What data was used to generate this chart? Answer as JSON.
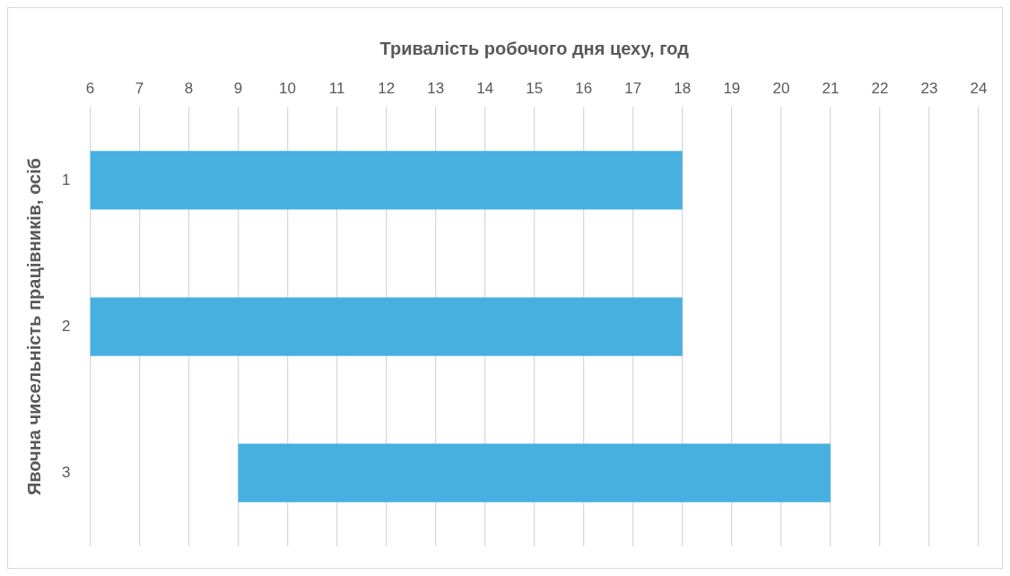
{
  "chart_data": {
    "type": "bar",
    "orientation": "horizontal",
    "xlabel": "Тривалість робочого дня цеху, год",
    "ylabel": "Явочна чисельність працівників, осіб",
    "categories": [
      "1",
      "2",
      "3"
    ],
    "base": [
      6,
      6,
      9
    ],
    "values": [
      12,
      12,
      12
    ],
    "color": "#47b0e0",
    "xlim": [
      6,
      24
    ],
    "xticks": [
      6,
      7,
      8,
      9,
      10,
      11,
      12,
      13,
      14,
      15,
      16,
      17,
      18,
      19,
      20,
      21,
      22,
      23,
      24
    ],
    "grid": "x",
    "legend": false
  }
}
